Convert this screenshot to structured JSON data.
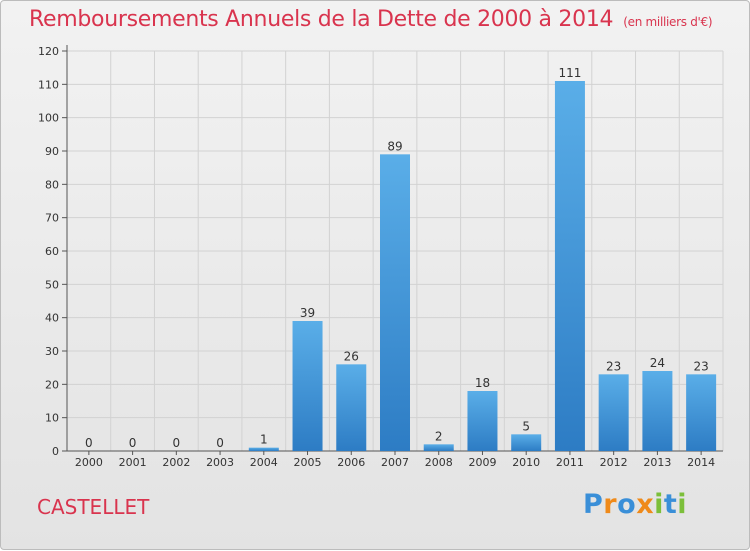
{
  "chart_data": {
    "type": "bar",
    "title": "Remboursements Annuels de la Dette de 2000 à 2014",
    "unit_label": "(en milliers d'€)",
    "categories": [
      "2000",
      "2001",
      "2002",
      "2003",
      "2004",
      "2005",
      "2006",
      "2007",
      "2008",
      "2009",
      "2010",
      "2011",
      "2012",
      "2013",
      "2014"
    ],
    "values": [
      0,
      0,
      0,
      0,
      1,
      39,
      26,
      89,
      2,
      18,
      5,
      111,
      23,
      24,
      23
    ],
    "yticks": [
      0,
      10,
      20,
      30,
      40,
      50,
      60,
      70,
      80,
      90,
      100,
      110,
      120
    ],
    "ylim": [
      0,
      120
    ],
    "grid": true,
    "bar_color": "#4a9be0",
    "accent_color": "#d9344e"
  },
  "commune": "CASTELLET",
  "logo": {
    "letters": [
      "P",
      "r",
      "o",
      "x",
      "i",
      "t",
      "i"
    ],
    "colors": [
      "#3a8fd8",
      "#ef8a1a",
      "#3a8fd8",
      "#ef8a1a",
      "#7cbf3a",
      "#3a8fd8",
      "#7cbf3a"
    ]
  }
}
